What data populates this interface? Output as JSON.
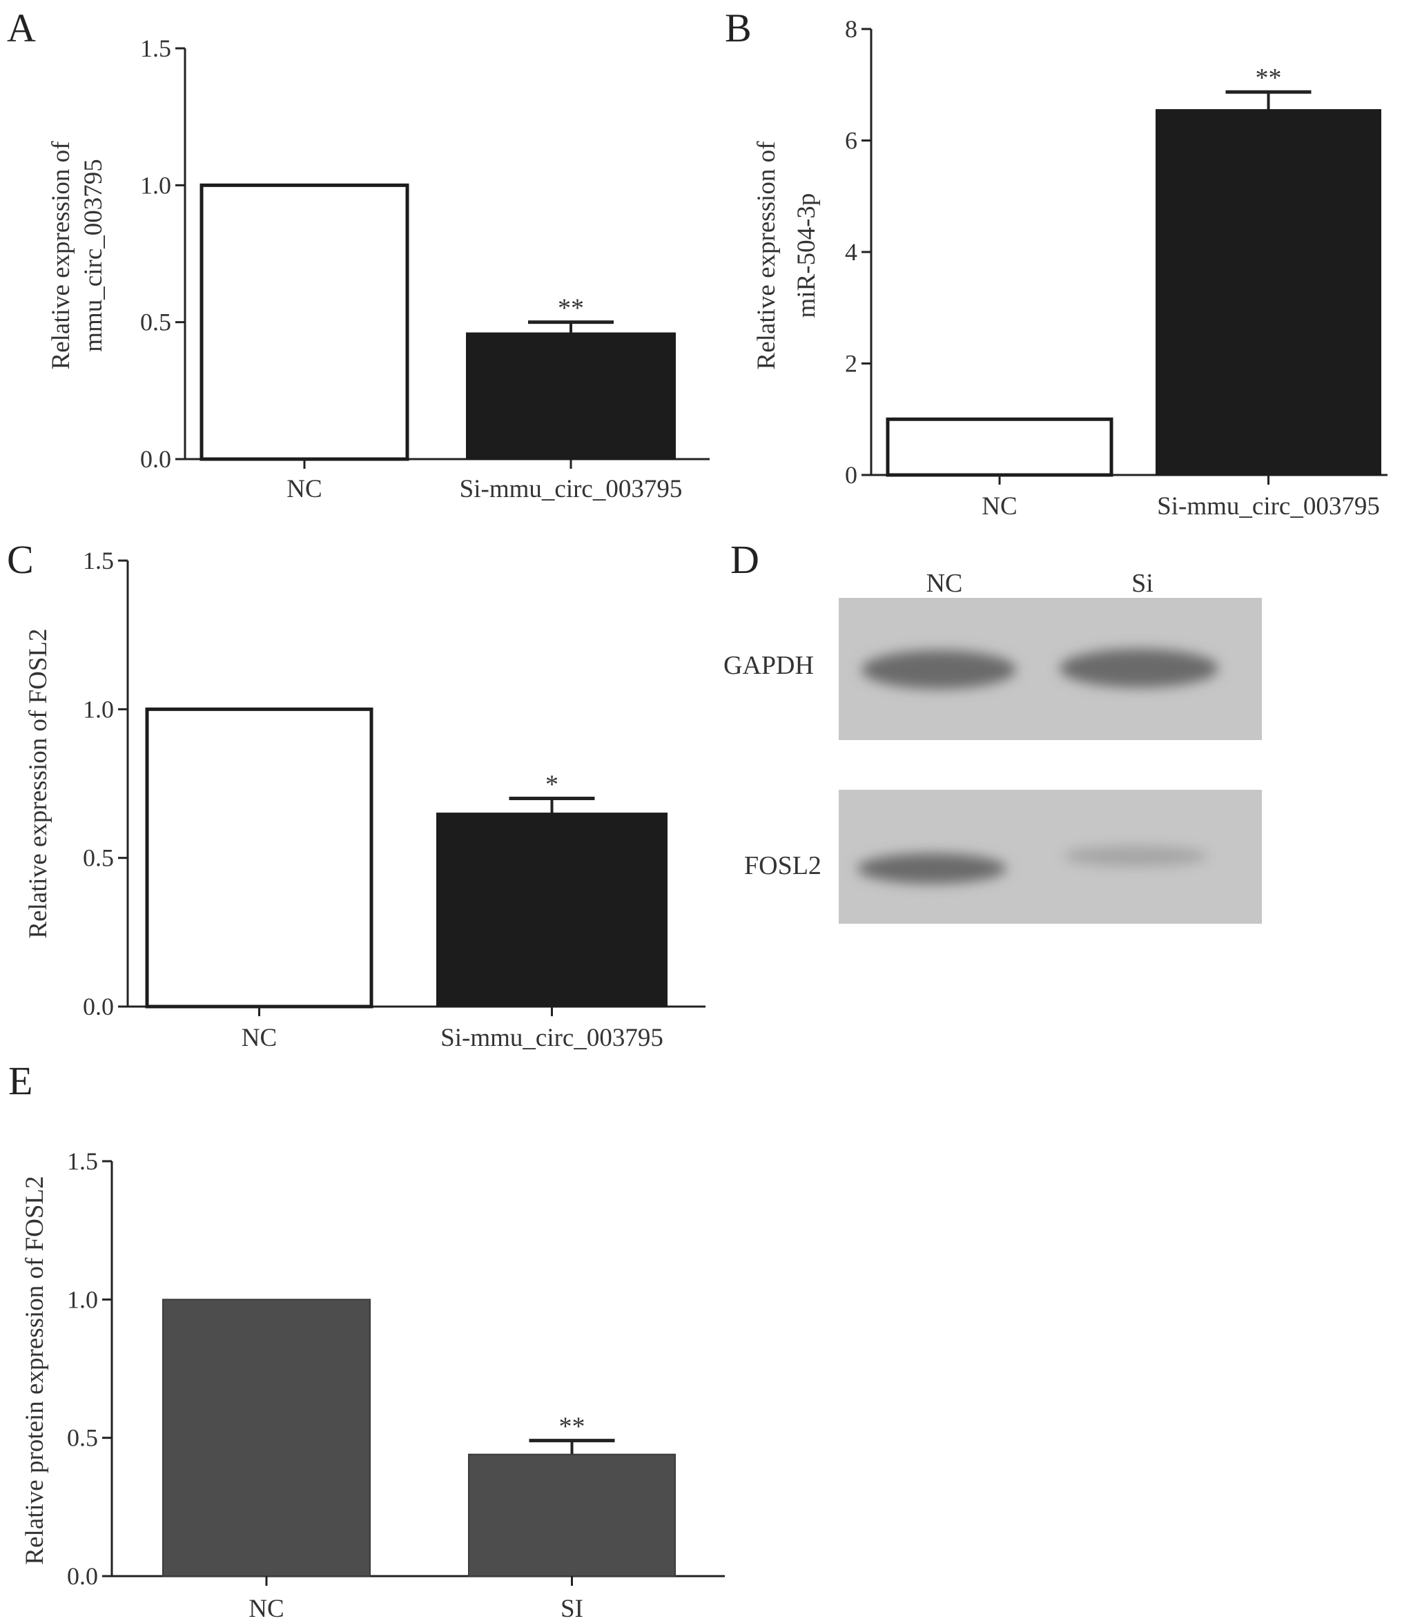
{
  "chart_data": [
    {
      "panel": "A",
      "type": "bar",
      "categories": [
        "NC",
        "Si-mmu_circ_003795"
      ],
      "values": [
        1.0,
        0.46
      ],
      "errors": [
        0,
        0.04
      ],
      "significance": [
        "",
        "**"
      ],
      "ylabel_lines": [
        "Relative expression of",
        "mmu_circ_003795"
      ],
      "ylim": [
        0,
        1.5
      ],
      "yticks": [
        "0.0",
        "0.5",
        "1.0",
        "1.5"
      ],
      "bar_styles": [
        "open",
        "filled"
      ],
      "bar_color": "#1c1c1c"
    },
    {
      "panel": "B",
      "type": "bar",
      "categories": [
        "NC",
        "Si-mmu_circ_003795"
      ],
      "values": [
        1.0,
        6.55
      ],
      "errors": [
        0,
        0.32
      ],
      "significance": [
        "",
        "**"
      ],
      "ylabel_lines": [
        "Relative expression  of",
        "miR-504-3p"
      ],
      "ylim": [
        0,
        8
      ],
      "yticks": [
        "0",
        "2",
        "4",
        "6",
        "8"
      ],
      "bar_styles": [
        "open",
        "filled"
      ],
      "bar_color": "#1c1c1c"
    },
    {
      "panel": "C",
      "type": "bar",
      "categories": [
        "NC",
        "Si-mmu_circ_003795"
      ],
      "values": [
        1.0,
        0.65
      ],
      "errors": [
        0,
        0.05
      ],
      "significance": [
        "",
        "*"
      ],
      "ylabel_lines": [
        "Relative expression of FOSL2"
      ],
      "ylim": [
        0,
        1.5
      ],
      "yticks": [
        "0.0",
        "0.5",
        "1.0",
        "1.5"
      ],
      "bar_styles": [
        "open",
        "filled"
      ],
      "bar_color": "#1c1c1c"
    },
    {
      "panel": "E",
      "type": "bar",
      "categories": [
        "NC",
        "SI"
      ],
      "values": [
        1.0,
        0.44
      ],
      "errors": [
        0,
        0.05
      ],
      "significance": [
        "",
        "**"
      ],
      "ylabel_lines": [
        "Relative protein expression of FOSL2"
      ],
      "ylim": [
        0,
        1.5
      ],
      "yticks": [
        "0.0",
        "0.5",
        "1.0",
        "1.5"
      ],
      "bar_styles": [
        "gray",
        "gray"
      ],
      "bar_color": "#4d4d4d"
    }
  ],
  "blot": {
    "panel": "D",
    "lanes": [
      "NC",
      "Si"
    ],
    "rows": [
      "GAPDH",
      "FOSL2"
    ],
    "band_intensity": [
      [
        1.0,
        1.0
      ],
      [
        1.0,
        0.35
      ]
    ],
    "background_color": "#c6c6c6",
    "band_color": "#6a6a6a"
  }
}
